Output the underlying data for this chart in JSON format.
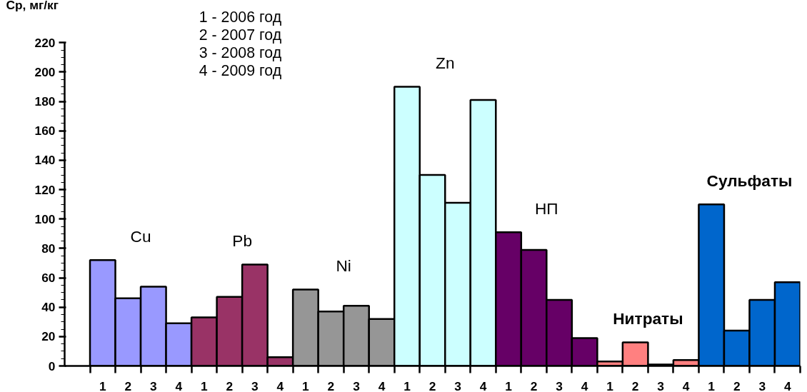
{
  "chart_data": {
    "type": "bar",
    "ylabel": "Ср, мг/кг",
    "categories": [
      "1",
      "2",
      "3",
      "4",
      "1",
      "2",
      "3",
      "4",
      "1",
      "2",
      "3",
      "4",
      "1",
      "2",
      "3",
      "4",
      "1",
      "2",
      "3",
      "4",
      "1",
      "2",
      "3",
      "4",
      "1",
      "2",
      "3",
      "4"
    ],
    "series": [
      {
        "name": "Cu",
        "color": "#9999ff",
        "values": [
          72,
          46,
          54,
          29,
          null,
          null,
          null,
          null,
          null,
          null,
          null,
          null,
          null,
          null,
          null,
          null,
          null,
          null,
          null,
          null,
          null,
          null,
          null,
          null,
          null,
          null,
          null,
          null
        ]
      },
      {
        "name": "Pb",
        "color": "#993366",
        "values": [
          null,
          null,
          null,
          null,
          33,
          47,
          69,
          6,
          null,
          null,
          null,
          null,
          null,
          null,
          null,
          null,
          null,
          null,
          null,
          null,
          null,
          null,
          null,
          null,
          null,
          null,
          null,
          null
        ]
      },
      {
        "name": "Ni",
        "color": "#969696",
        "values": [
          null,
          null,
          null,
          null,
          null,
          null,
          null,
          null,
          52,
          37,
          41,
          32,
          null,
          null,
          null,
          null,
          null,
          null,
          null,
          null,
          null,
          null,
          null,
          null,
          null,
          null,
          null,
          null
        ]
      },
      {
        "name": "Zn",
        "color": "#ccffff",
        "values": [
          null,
          null,
          null,
          null,
          null,
          null,
          null,
          null,
          null,
          null,
          null,
          null,
          190,
          130,
          111,
          181,
          null,
          null,
          null,
          null,
          null,
          null,
          null,
          null,
          null,
          null,
          null,
          null
        ]
      },
      {
        "name": "НП",
        "color": "#660066",
        "values": [
          null,
          null,
          null,
          null,
          null,
          null,
          null,
          null,
          null,
          null,
          null,
          null,
          null,
          null,
          null,
          null,
          91,
          79,
          45,
          19,
          null,
          null,
          null,
          null,
          null,
          null,
          null,
          null
        ]
      },
      {
        "name": "Нитраты",
        "color": "#ff8080",
        "values": [
          null,
          null,
          null,
          null,
          null,
          null,
          null,
          null,
          null,
          null,
          null,
          null,
          null,
          null,
          null,
          null,
          null,
          null,
          null,
          null,
          3,
          16,
          1,
          4,
          null,
          null,
          null,
          null
        ]
      },
      {
        "name": "Сульфаты",
        "color": "#0066cc",
        "values": [
          null,
          null,
          null,
          null,
          null,
          null,
          null,
          null,
          null,
          null,
          null,
          null,
          null,
          null,
          null,
          null,
          null,
          null,
          null,
          null,
          null,
          null,
          null,
          null,
          110,
          24,
          45,
          57
        ]
      }
    ],
    "ylim": [
      0,
      220
    ],
    "yticks": [
      0,
      20,
      40,
      60,
      80,
      100,
      120,
      140,
      160,
      180,
      200,
      220
    ],
    "annotations": [
      "1 - 2006 год",
      "2 - 2007 год",
      "3 - 2008 год",
      "4 - 2009 год"
    ],
    "grid": false
  }
}
